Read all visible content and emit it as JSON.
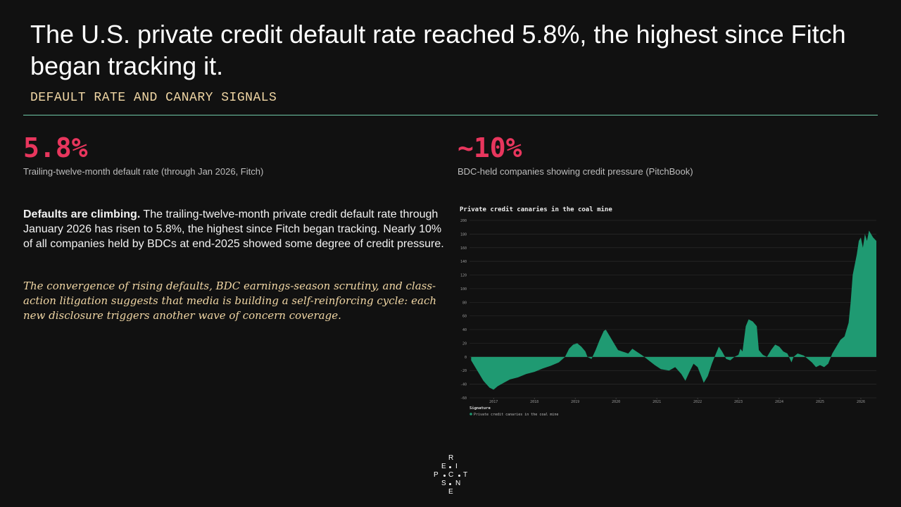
{
  "header": {
    "title": "The U.S. private credit default rate reached 5.8%, the highest since Fitch began tracking it.",
    "subtitle": "DEFAULT RATE AND CANARY SIGNALS"
  },
  "stats": [
    {
      "value": "5.8%",
      "label": "Trailing-twelve-month default rate (through Jan 2026, Fitch)"
    },
    {
      "value": "~10%",
      "label": "BDC-held companies showing credit pressure (PitchBook)"
    }
  ],
  "text": {
    "lead": "Defaults are climbing.",
    "body": "The trailing-twelve-month private credit default rate through January 2026 has risen to 5.8%, the highest since Fitch began tracking. Nearly 10% of all companies held by BDCs at end-2025 showed some degree of credit pressure.",
    "note": "The convergence of rising defaults, BDC earnings-season scrutiny, and class-action litigation suggests that media is building a self-reinforcing cycle: each new disclosure triggers another wave of concern coverage."
  },
  "chart_data": {
    "type": "area",
    "title": "Private credit canaries in the coal mine",
    "legend_title": "Signature",
    "x": [
      2016.45,
      2016.6,
      2016.75,
      2016.9,
      2017.0,
      2017.1,
      2017.25,
      2017.4,
      2017.6,
      2017.8,
      2018.0,
      2018.2,
      2018.4,
      2018.6,
      2018.75,
      2018.85,
      2018.95,
      2019.05,
      2019.15,
      2019.25,
      2019.3,
      2019.4,
      2019.5,
      2019.6,
      2019.7,
      2019.75,
      2019.85,
      2019.95,
      2020.05,
      2020.15,
      2020.3,
      2020.4,
      2020.5,
      2020.65,
      2020.8,
      2020.95,
      2021.1,
      2021.3,
      2021.45,
      2021.6,
      2021.7,
      2021.8,
      2021.9,
      2022.0,
      2022.1,
      2022.15,
      2022.25,
      2022.35,
      2022.45,
      2022.52,
      2022.6,
      2022.7,
      2022.8,
      2022.9,
      2023.0,
      2023.05,
      2023.1,
      2023.18,
      2023.25,
      2023.35,
      2023.45,
      2023.5,
      2023.6,
      2023.7,
      2023.8,
      2023.9,
      2024.0,
      2024.1,
      2024.2,
      2024.3,
      2024.35,
      2024.45,
      2024.6,
      2024.8,
      2024.9,
      2025.0,
      2025.1,
      2025.2,
      2025.3,
      2025.4,
      2025.5,
      2025.6,
      2025.7,
      2025.75,
      2025.8,
      2025.9,
      2025.95,
      2026.0,
      2026.05,
      2026.1,
      2026.15,
      2026.2,
      2026.3,
      2026.38
    ],
    "series": [
      {
        "name": "Private credit canaries in the coal mine",
        "color": "#1f9a72",
        "values": [
          -5,
          -20,
          -35,
          -45,
          -48,
          -43,
          -38,
          -33,
          -30,
          -25,
          -22,
          -17,
          -13,
          -8,
          0,
          12,
          18,
          20,
          15,
          8,
          0,
          -3,
          10,
          25,
          38,
          40,
          30,
          20,
          10,
          8,
          5,
          12,
          8,
          2,
          -5,
          -12,
          -18,
          -20,
          -15,
          -25,
          -35,
          -22,
          -10,
          -15,
          -30,
          -38,
          -28,
          -10,
          5,
          15,
          8,
          -3,
          -5,
          0,
          3,
          12,
          8,
          45,
          55,
          52,
          45,
          10,
          3,
          0,
          10,
          18,
          15,
          8,
          5,
          -8,
          0,
          5,
          2,
          -8,
          -15,
          -12,
          -15,
          -10,
          5,
          15,
          25,
          30,
          50,
          80,
          120,
          150,
          170,
          175,
          160,
          180,
          170,
          185,
          175,
          170
        ]
      }
    ],
    "xlim": [
      2016.41,
      2026.38
    ],
    "xticks": [
      2017,
      2018,
      2019,
      2020,
      2021,
      2022,
      2023,
      2024,
      2025,
      2026
    ],
    "ylim": [
      -60,
      200
    ],
    "yticks": [
      -60,
      -40,
      -20,
      0,
      20,
      40,
      60,
      80,
      100,
      120,
      140,
      160,
      180,
      200
    ],
    "grid": true
  },
  "logo": [
    "R",
    "E",
    "I",
    "P",
    "C",
    "T",
    "S",
    "N",
    "E"
  ]
}
